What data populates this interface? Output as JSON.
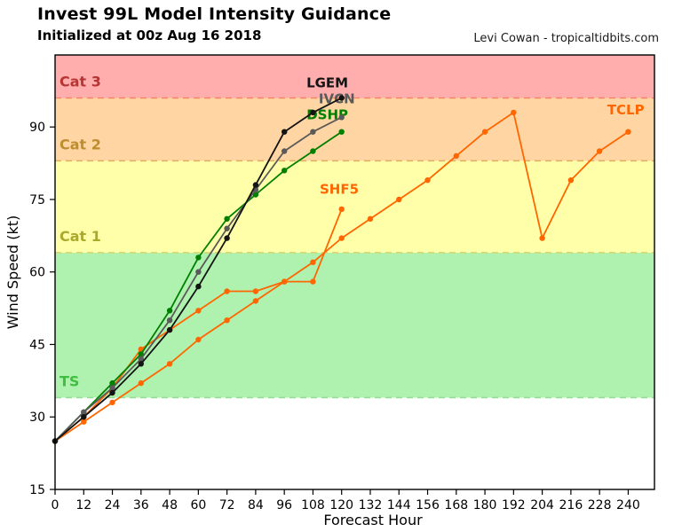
{
  "header": {
    "title": "Invest 99L Model Intensity Guidance",
    "subtitle": "Initialized at 00z Aug 16 2018",
    "credit": "Levi Cowan - tropicaltidbits.com"
  },
  "chart_data": {
    "type": "line",
    "title": "Invest 99L Model Intensity Guidance",
    "subtitle": "Initialized at 00z Aug 16 2018",
    "xlabel": "Forecast Hour",
    "ylabel": "Wind Speed (kt)",
    "xlim": [
      0,
      251
    ],
    "ylim": [
      15,
      104.9
    ],
    "x_ticks": [
      0,
      12,
      24,
      36,
      48,
      60,
      72,
      84,
      96,
      108,
      120,
      132,
      144,
      156,
      168,
      180,
      192,
      204,
      216,
      228,
      240
    ],
    "y_ticks": [
      15,
      30,
      45,
      60,
      75,
      90
    ],
    "grid": false,
    "legend": "inline-labels-at-line-ends",
    "bands": [
      {
        "label": "TS",
        "from": 34,
        "to": 64,
        "fill": "#aff2af",
        "text_color": "#3fbf3f",
        "edge_color": "#96dc96",
        "label_kt": 37.5
      },
      {
        "label": "Cat 1",
        "from": 64,
        "to": 83,
        "fill": "#ffffaa",
        "text_color": "#a9a92b",
        "edge_color": "#d6d670",
        "label_kt": 67.5
      },
      {
        "label": "Cat 2",
        "from": 83,
        "to": 96,
        "fill": "#ffd6a3",
        "text_color": "#bd8d2e",
        "edge_color": "#dfae60",
        "label_kt": 86.5
      },
      {
        "label": "Cat 3",
        "from": 96,
        "to": 104.9,
        "fill": "#ffadad",
        "text_color": "#b73434",
        "edge_color": "#f08868",
        "label_kt": 99.5
      }
    ],
    "series": [
      {
        "name": "TCLP",
        "color": "#ff6600",
        "x": [
          0,
          12,
          24,
          36,
          48,
          60,
          72,
          84,
          96,
          108,
          120,
          132,
          144,
          156,
          168,
          180,
          192,
          204,
          216,
          228,
          240
        ],
        "values": [
          25,
          29,
          33,
          37,
          41,
          46,
          50,
          54,
          58,
          62,
          67,
          71,
          75,
          79,
          84,
          89,
          93,
          67,
          79,
          85,
          89
        ],
        "label": {
          "hour": 239,
          "kt": 92.6
        }
      },
      {
        "name": "SHF5",
        "color": "#ff6600",
        "x": [
          0,
          12,
          24,
          36,
          48,
          60,
          72,
          84,
          96,
          108,
          120
        ],
        "values": [
          25,
          30,
          36,
          44,
          48,
          52,
          56,
          56,
          58,
          58,
          73
        ],
        "label": {
          "hour": 119,
          "kt": 76.2
        }
      },
      {
        "name": "DSHP",
        "color": "#008000",
        "x": [
          0,
          12,
          24,
          36,
          48,
          60,
          72,
          84,
          96,
          108,
          120
        ],
        "values": [
          25,
          31,
          37,
          43,
          52,
          63,
          71,
          76,
          81,
          85,
          89
        ],
        "label": {
          "hour": 114,
          "kt": 91.6
        }
      },
      {
        "name": "IVCN",
        "color": "#5a5a5a",
        "x": [
          0,
          12,
          24,
          36,
          48,
          60,
          72,
          84,
          96,
          108,
          120
        ],
        "values": [
          25,
          31,
          36,
          42,
          50,
          60,
          69,
          77,
          85,
          89,
          92
        ],
        "label": {
          "hour": 118,
          "kt": 94.9
        }
      },
      {
        "name": "LGEM",
        "color": "#141414",
        "x": [
          0,
          12,
          24,
          36,
          48,
          60,
          72,
          84,
          96,
          108,
          120
        ],
        "values": [
          25,
          30,
          35,
          41,
          48,
          57,
          67,
          78,
          89,
          93,
          96
        ],
        "label": {
          "hour": 114,
          "kt": 98.2
        }
      }
    ]
  }
}
